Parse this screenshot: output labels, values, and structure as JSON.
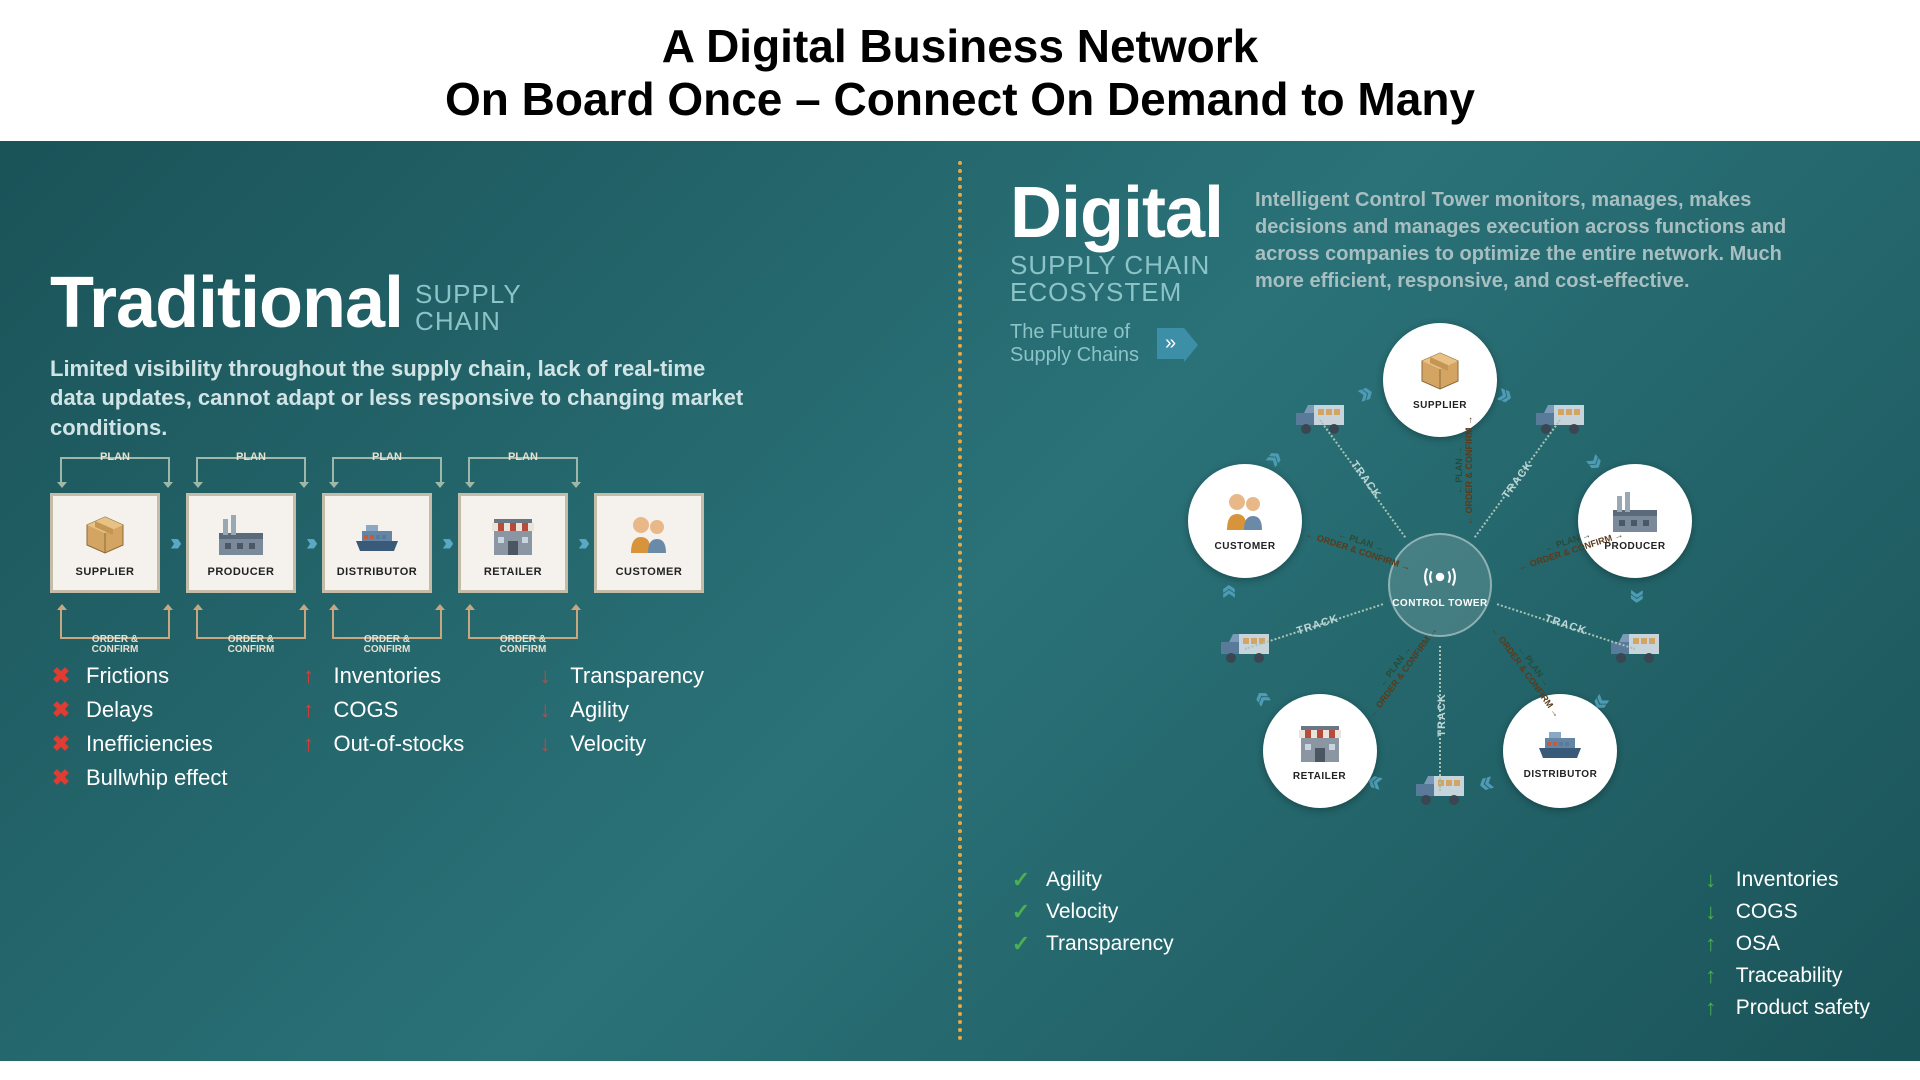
{
  "header": {
    "line1": "A Digital Business Network",
    "line2": "On Board Once – Connect On Demand to Many"
  },
  "colors": {
    "bg_gradient_start": "#1a5358",
    "bg_gradient_end": "#2a7278",
    "divider": "#e8a944",
    "accent_teal": "#8bc3c7",
    "arrow_blue": "#5aa8c4",
    "red": "#e03c31",
    "green": "#4caf50",
    "plan_border": "#9db8a8",
    "order_border": "#c9a77e"
  },
  "left": {
    "title_main": "Traditional",
    "title_sub_line1": "SUPPLY",
    "title_sub_line2": "CHAIN",
    "description": "Limited visibility throughout the supply chain, lack of real-time data updates, cannot adapt or less responsive to changing market conditions.",
    "chain": {
      "plan_label": "PLAN",
      "order_label": "ORDER & CONFIRM",
      "nodes": [
        {
          "label": "SUPPLIER",
          "icon": "box"
        },
        {
          "label": "PRODUCER",
          "icon": "factory"
        },
        {
          "label": "DISTRIBUTOR",
          "icon": "ship"
        },
        {
          "label": "RETAILER",
          "icon": "store"
        },
        {
          "label": "CUSTOMER",
          "icon": "people"
        }
      ]
    },
    "attributes": {
      "col1": [
        {
          "icon": "x",
          "text": "Frictions",
          "color": "#e03c31"
        },
        {
          "icon": "x",
          "text": "Delays",
          "color": "#e03c31"
        },
        {
          "icon": "x",
          "text": "Inefficiencies",
          "color": "#e03c31"
        },
        {
          "icon": "x",
          "text": "Bullwhip effect",
          "color": "#e03c31"
        }
      ],
      "col2": [
        {
          "icon": "up",
          "text": "Inventories",
          "color": "#e03c31"
        },
        {
          "icon": "up",
          "text": "COGS",
          "color": "#e03c31"
        },
        {
          "icon": "up",
          "text": "Out-of-stocks",
          "color": "#e03c31"
        }
      ],
      "col3": [
        {
          "icon": "down",
          "text": "Transparency",
          "color": "#e03c31"
        },
        {
          "icon": "down",
          "text": "Agility",
          "color": "#e03c31"
        },
        {
          "icon": "down",
          "text": "Velocity",
          "color": "#e03c31"
        }
      ]
    }
  },
  "right": {
    "title_main": "Digital",
    "title_sub_line1": "SUPPLY CHAIN",
    "title_sub_line2": "ECOSYSTEM",
    "description": "Intelligent Control Tower monitors, manages, makes decisions and manages execution across functions and across companies to optimize the entire network. Much more efficient, responsive, and cost-effective.",
    "future_label_line1": "The Future of",
    "future_label_line2": "Supply Chains",
    "future_arrow": "»",
    "center_label": "CONTROL TOWER",
    "plan_label": "PLAN",
    "order_label": "ORDER & CONFIRM",
    "track_label": "TRACK",
    "nodes": [
      {
        "label": "SUPPLIER",
        "icon": "box",
        "angle": -90
      },
      {
        "label": "PRODUCER",
        "icon": "factory",
        "angle": -18
      },
      {
        "label": "DISTRIBUTOR",
        "icon": "ship",
        "angle": 54
      },
      {
        "label": "RETAILER",
        "icon": "store",
        "angle": 126
      },
      {
        "label": "CUSTOMER",
        "icon": "people",
        "angle": 198
      }
    ],
    "attributes": {
      "left_col": [
        {
          "icon": "check",
          "text": "Agility",
          "color": "#4caf50"
        },
        {
          "icon": "check",
          "text": "Velocity",
          "color": "#4caf50"
        },
        {
          "icon": "check",
          "text": "Transparency",
          "color": "#4caf50"
        }
      ],
      "right_col": [
        {
          "icon": "down",
          "text": "Inventories",
          "color": "#4caf50"
        },
        {
          "icon": "down",
          "text": "COGS",
          "color": "#4caf50"
        },
        {
          "icon": "up",
          "text": "OSA",
          "color": "#4caf50"
        },
        {
          "icon": "up",
          "text": "Traceability",
          "color": "#4caf50"
        },
        {
          "icon": "up",
          "text": "Product safety",
          "color": "#4caf50"
        }
      ]
    }
  }
}
